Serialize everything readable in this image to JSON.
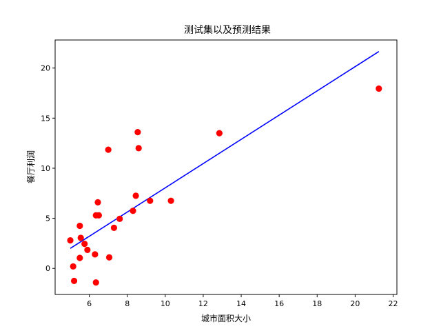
{
  "chart_data": {
    "type": "scatter",
    "title": "测试集以及预测结果",
    "xlabel": "城市面积大小",
    "ylabel": "餐厅利润",
    "xlim": [
      4.2,
      22.2
    ],
    "ylim": [
      -2.6,
      22.8
    ],
    "xticks": [
      6,
      8,
      10,
      12,
      14,
      16,
      18,
      20,
      22
    ],
    "yticks": [
      0,
      5,
      10,
      15,
      20
    ],
    "grid": false,
    "legend": "none",
    "colors": {
      "points": "#ff0000",
      "line": "#0000ff",
      "axes": "#000000"
    },
    "series": [
      {
        "kind": "scatter",
        "points": [
          [
            5.0,
            2.8
          ],
          [
            5.15,
            0.2
          ],
          [
            5.2,
            -1.25
          ],
          [
            5.5,
            1.05
          ],
          [
            5.5,
            4.25
          ],
          [
            5.55,
            3.05
          ],
          [
            5.75,
            2.45
          ],
          [
            5.9,
            1.85
          ],
          [
            6.3,
            1.4
          ],
          [
            6.35,
            -1.4
          ],
          [
            6.35,
            5.3
          ],
          [
            6.45,
            6.6
          ],
          [
            6.5,
            5.3
          ],
          [
            7.0,
            11.85
          ],
          [
            7.05,
            1.1
          ],
          [
            7.3,
            4.05
          ],
          [
            7.6,
            4.95
          ],
          [
            8.3,
            5.75
          ],
          [
            8.45,
            7.25
          ],
          [
            8.55,
            13.6
          ],
          [
            8.6,
            12.0
          ],
          [
            9.2,
            6.75
          ],
          [
            10.3,
            6.75
          ],
          [
            12.85,
            13.5
          ],
          [
            21.25,
            17.95
          ]
        ]
      },
      {
        "kind": "line",
        "points": [
          [
            5.0,
            2.0
          ],
          [
            21.25,
            21.65
          ]
        ]
      }
    ]
  }
}
